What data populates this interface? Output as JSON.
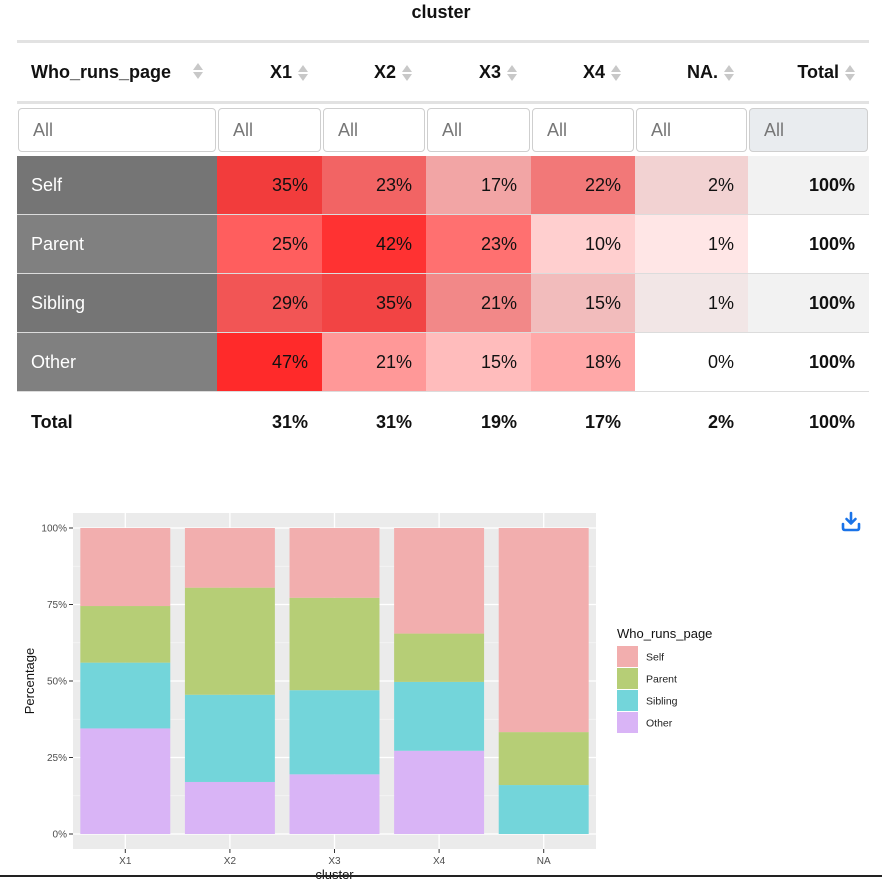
{
  "table": {
    "caption": "cluster",
    "columns": [
      "Who_runs_page",
      "X1",
      "X2",
      "X3",
      "X4",
      "NA.",
      "Total"
    ],
    "filter_placeholder": "All",
    "rows": [
      {
        "label": "Self",
        "label_bg": "#757575",
        "cells": [
          "35%",
          "23%",
          "17%",
          "22%",
          "2%"
        ],
        "bgs": [
          "#f23c3c",
          "#f26464",
          "#f2a5a5",
          "#f27878",
          "#f2d2d2"
        ],
        "total": "100%",
        "total_bg": "#f2f2f2"
      },
      {
        "label": "Parent",
        "label_bg": "#808080",
        "cells": [
          "25%",
          "42%",
          "23%",
          "10%",
          "1%"
        ],
        "bgs": [
          "#ff5e5e",
          "#ff3232",
          "#ff7070",
          "#ffcfcf",
          "#ffe6e6"
        ],
        "total": "100%",
        "total_bg": "#ffffff"
      },
      {
        "label": "Sibling",
        "label_bg": "#757575",
        "cells": [
          "29%",
          "35%",
          "21%",
          "15%",
          "1%"
        ],
        "bgs": [
          "#f25555",
          "#f24444",
          "#f28888",
          "#f2bcbc",
          "#f2e6e6"
        ],
        "total": "100%",
        "total_bg": "#f2f2f2"
      },
      {
        "label": "Other",
        "label_bg": "#808080",
        "cells": [
          "47%",
          "21%",
          "15%",
          "18%",
          "0%"
        ],
        "bgs": [
          "#ff2a2a",
          "#ff9898",
          "#ffbcbc",
          "#ffa8a8",
          "#ffffff"
        ],
        "total": "100%",
        "total_bg": "#ffffff"
      }
    ],
    "totals": {
      "label": "Total",
      "cells": [
        "31%",
        "31%",
        "19%",
        "17%",
        "2%"
      ],
      "total": "100%"
    }
  },
  "chart_data": {
    "type": "bar",
    "stacked": true,
    "categories": [
      "X1",
      "X2",
      "X3",
      "X4",
      "NA"
    ],
    "series": [
      {
        "name": "Self",
        "color": "#f2aeae",
        "values": [
          25.5,
          19.5,
          22.8,
          34.5,
          66.7
        ]
      },
      {
        "name": "Parent",
        "color": "#b6ce76",
        "values": [
          18.5,
          35.0,
          30.2,
          15.8,
          17.3
        ]
      },
      {
        "name": "Sibling",
        "color": "#73d5da",
        "values": [
          21.5,
          28.5,
          27.5,
          22.5,
          16.0
        ]
      },
      {
        "name": "Other",
        "color": "#d9b4f6",
        "values": [
          34.5,
          17.0,
          19.5,
          27.2,
          0.0
        ]
      }
    ],
    "stack_order_bottom_to_top": [
      "Other",
      "Sibling",
      "Parent",
      "Self"
    ],
    "xlabel": "cluster",
    "ylabel": "Percentage",
    "ylim": [
      0,
      100
    ],
    "yticks": [
      0,
      25,
      50,
      75,
      100
    ],
    "ytick_labels": [
      "0%",
      "25%",
      "50%",
      "75%",
      "100%"
    ],
    "legend_title": "Who_runs_page",
    "legend_position": "right",
    "panel_bg": "#ebebeb",
    "grid": true
  },
  "toolbar": {
    "download_icon": "download-icon",
    "accent": "#1a73e8"
  }
}
